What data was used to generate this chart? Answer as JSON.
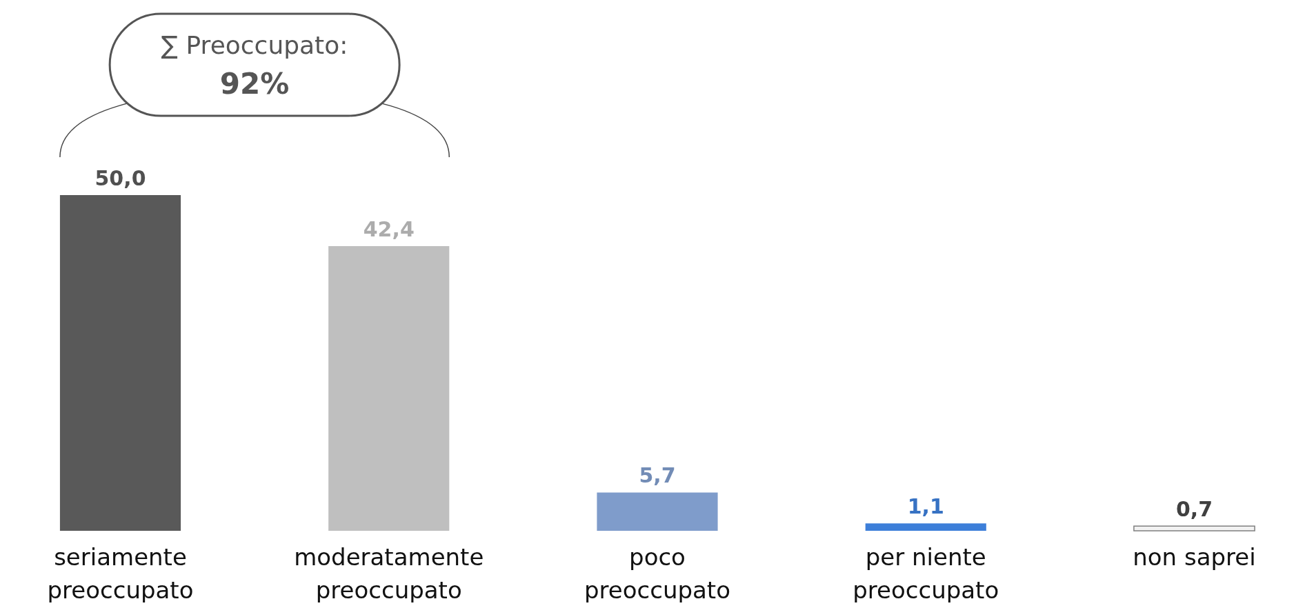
{
  "chart_data": {
    "type": "bar",
    "categories": [
      "seriamente preoccupato",
      "moderatamente preoccupato",
      "poco preoccupato",
      "per niente preoccupato",
      "non saprei"
    ],
    "values": [
      50.0,
      42.4,
      5.7,
      1.1,
      0.7
    ],
    "colors": [
      "#595959",
      "#bfbfbf",
      "#7f9ccb",
      "#3d7fd9",
      "#f2f2f2"
    ],
    "value_labels": [
      "50,0",
      "42,4",
      "5,7",
      "1,1",
      "0,7"
    ],
    "annotations": [
      "∑ Preoccupato: 92%"
    ]
  }
}
